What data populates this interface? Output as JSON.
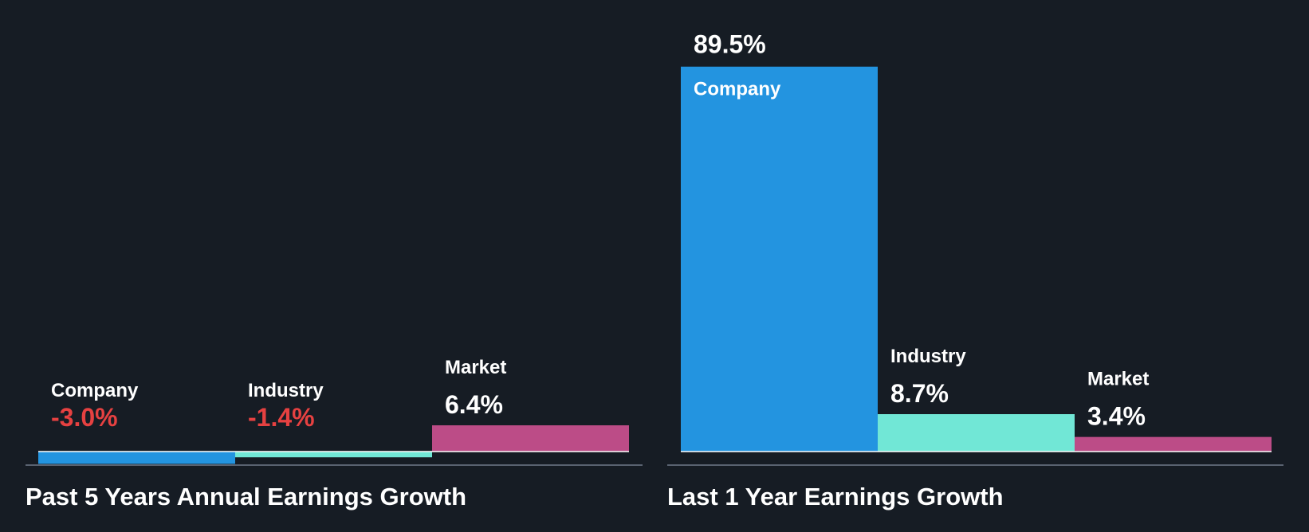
{
  "colors": {
    "background": "#161c24",
    "company": "#2394e0",
    "industry": "#71e7d6",
    "market": "#bc4c87",
    "negative_text": "#e64141",
    "positive_text": "#ffffff",
    "axis": "#596270",
    "zero_line": "#ffffff"
  },
  "chart_data": [
    {
      "type": "bar",
      "title": "Past 5 Years Annual Earnings Growth",
      "categories": [
        "Company",
        "Industry",
        "Market"
      ],
      "values": [
        -3.0,
        -1.4,
        6.4
      ],
      "value_labels": [
        "-3.0%",
        "-1.4%",
        "6.4%"
      ],
      "unit": "%",
      "ylim": [
        -3.0,
        6.4
      ],
      "grid": false,
      "legend": "none"
    },
    {
      "type": "bar",
      "title": "Last 1 Year Earnings Growth",
      "categories": [
        "Company",
        "Industry",
        "Market"
      ],
      "values": [
        89.5,
        8.7,
        3.4
      ],
      "value_labels": [
        "89.5%",
        "8.7%",
        "3.4%"
      ],
      "unit": "%",
      "ylim": [
        0,
        89.5
      ],
      "grid": false,
      "legend": "none"
    }
  ]
}
